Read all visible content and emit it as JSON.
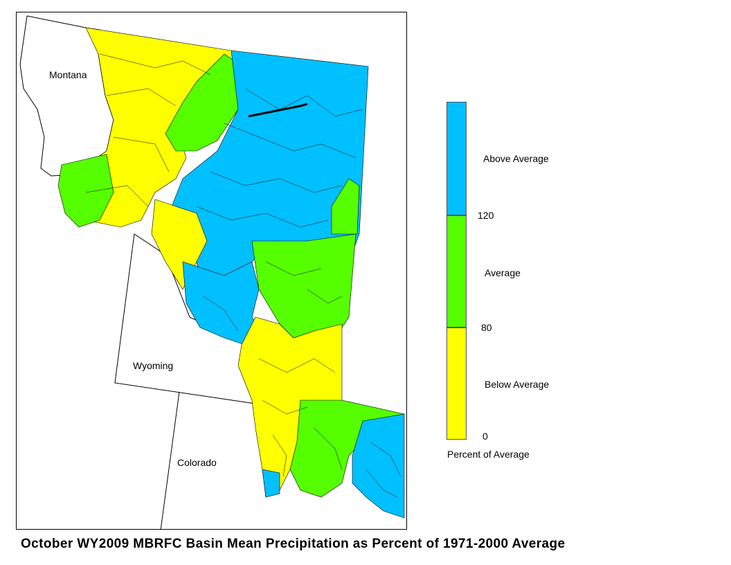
{
  "map": {
    "states": [
      {
        "name": "Montana"
      },
      {
        "name": "Wyoming"
      },
      {
        "name": "Colorado"
      }
    ]
  },
  "legend": {
    "categories": [
      {
        "label": "Above Average",
        "color": "#00c0ff"
      },
      {
        "label": "Average",
        "color": "#55ff00"
      },
      {
        "label": "Below Average",
        "color": "#ffff00"
      }
    ],
    "breaks": [
      "120",
      "80",
      "0"
    ],
    "title": "Percent of Average"
  },
  "caption": "October WY2009 MBRFC Basin Mean Precipitation as Percent of 1971-2000 Average"
}
